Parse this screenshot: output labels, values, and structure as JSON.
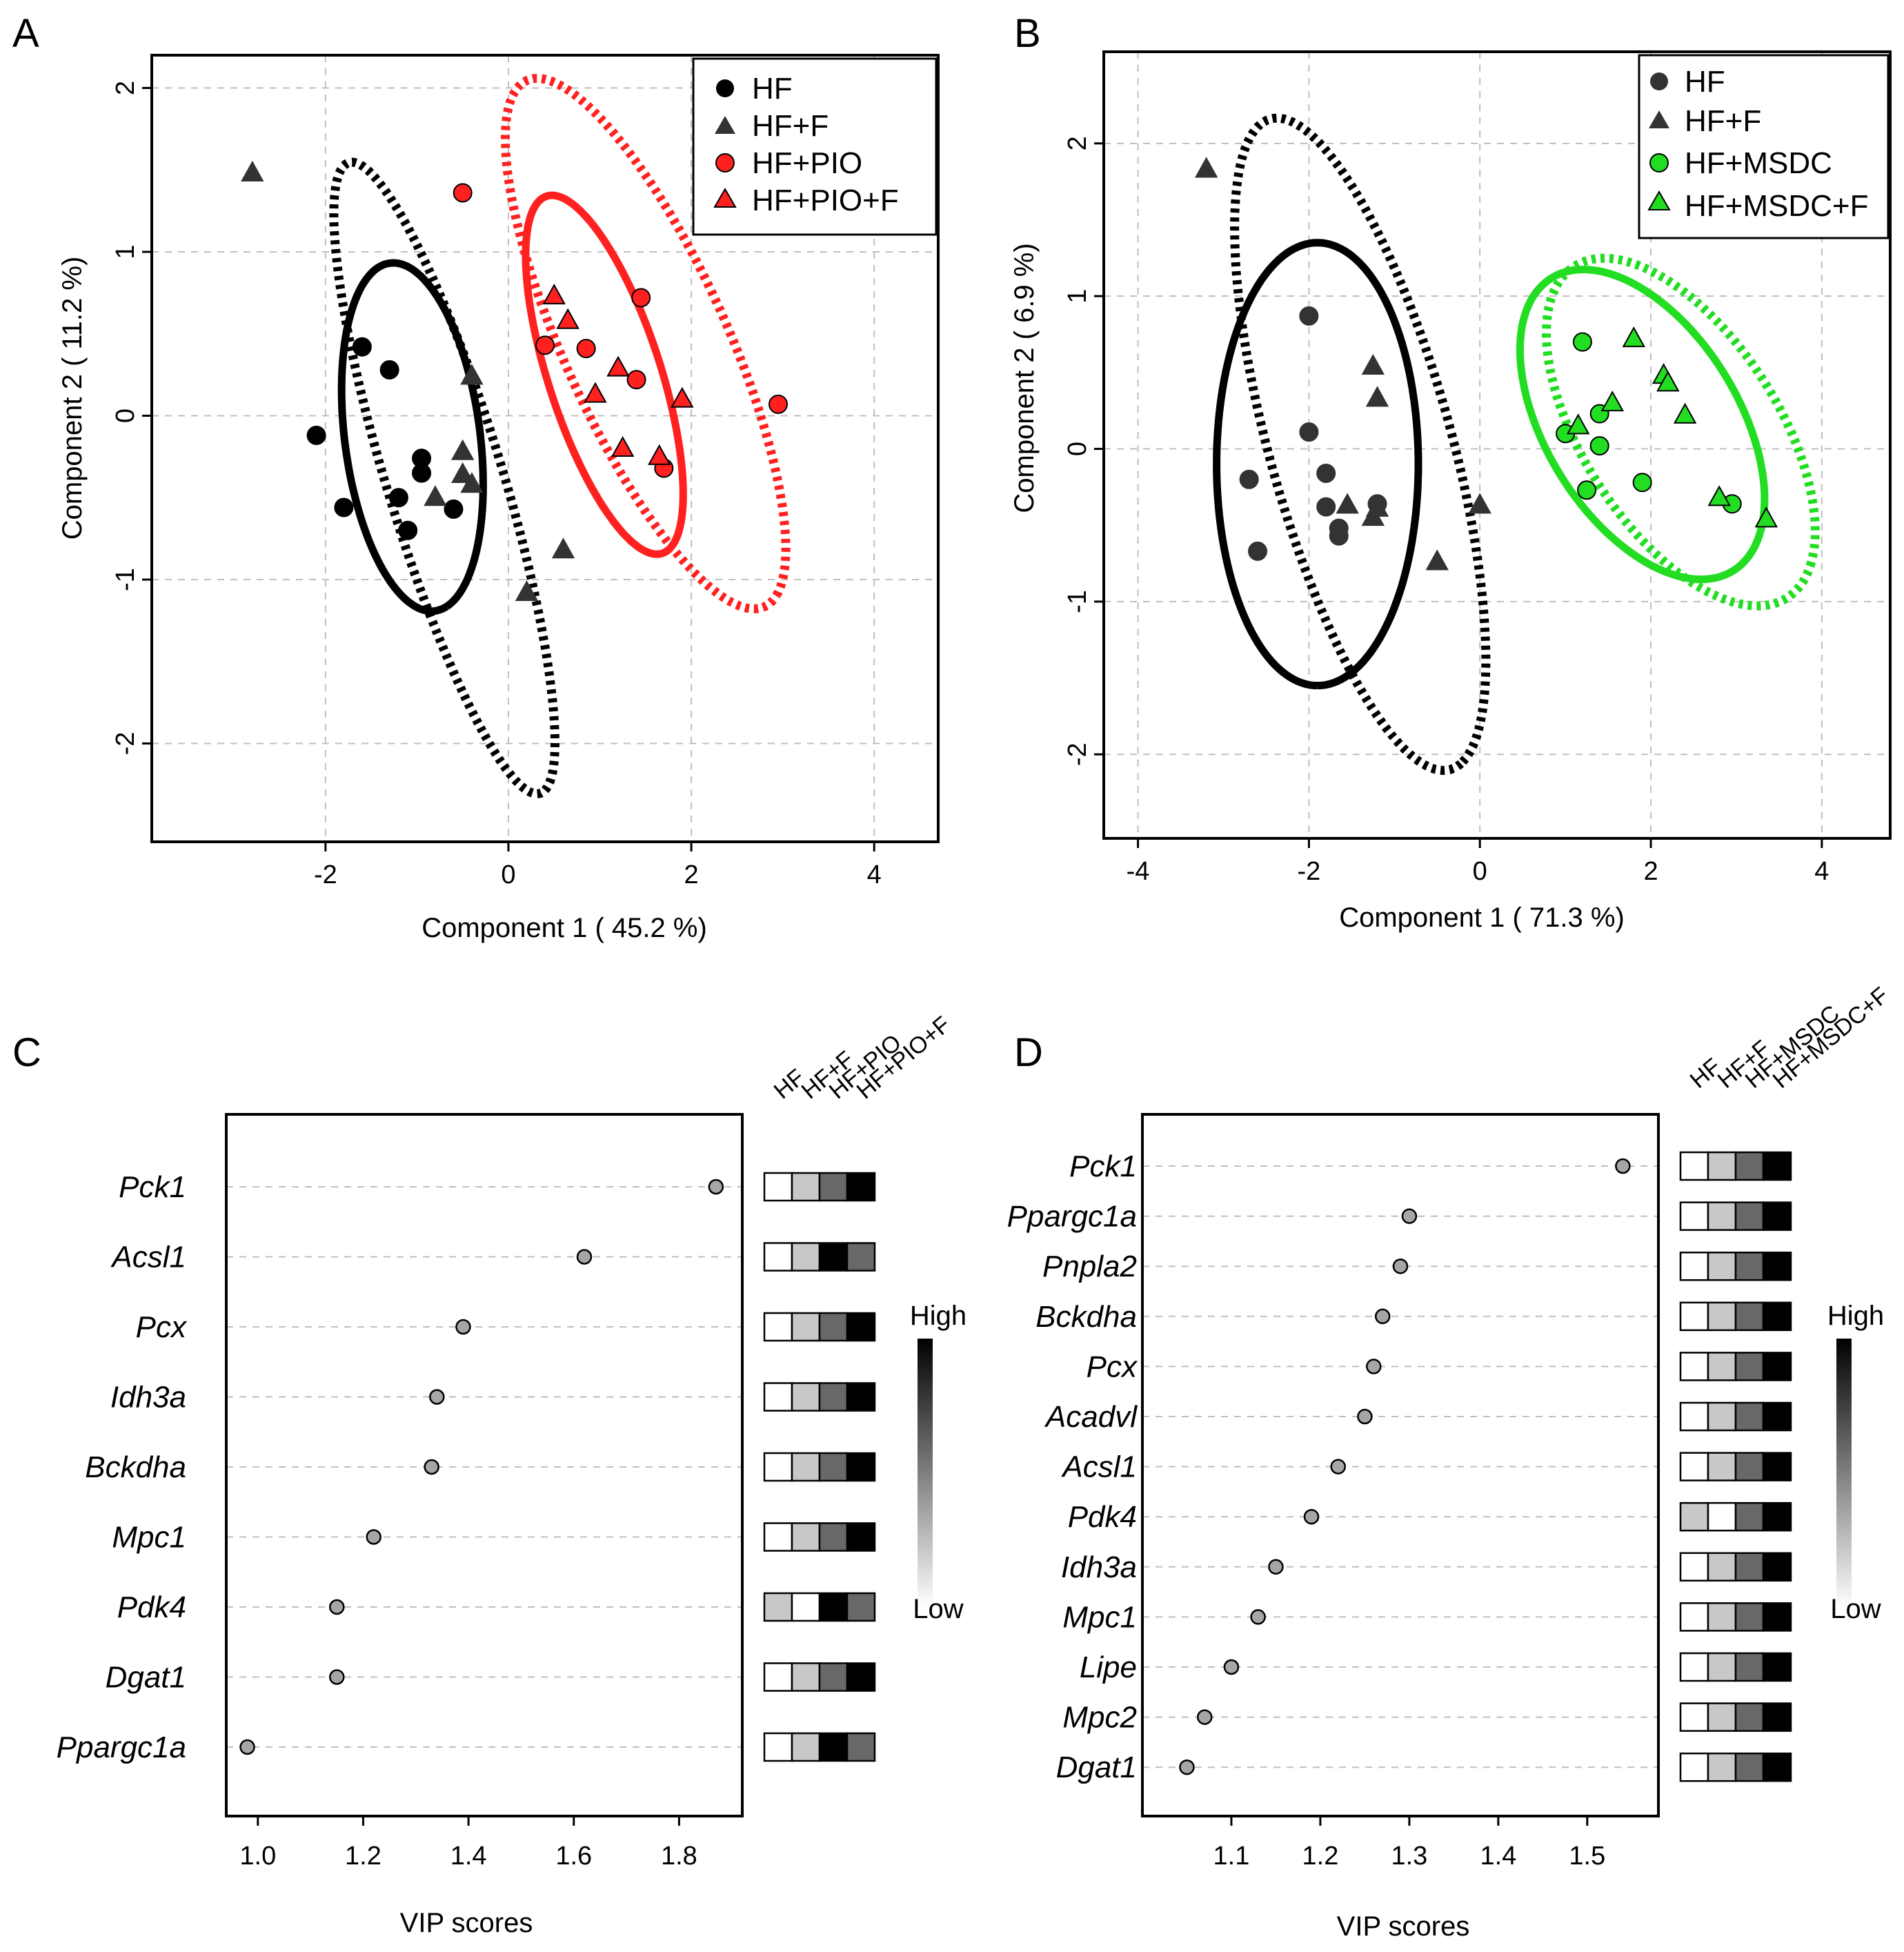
{
  "chart_data": [
    {
      "panel": "A",
      "type": "scatter",
      "xlabel": "Component 1 ( 45.2 %)",
      "ylabel": "Component 2 ( 11.2 %)",
      "xlim": [
        -3.9,
        4.7
      ],
      "ylim": [
        -2.6,
        2.2
      ],
      "xticks": [
        -2,
        0,
        2,
        4
      ],
      "yticks": [
        -2,
        -1,
        0,
        1,
        2
      ],
      "tick_labels_x": [
        "-2",
        "0",
        "2",
        "4"
      ],
      "tick_labels_y": [
        "-2",
        "-1",
        "0",
        "1",
        "2"
      ],
      "legend": {
        "position": "top-right",
        "entries": [
          {
            "label": "HF",
            "color": "#000000",
            "shape": "circle"
          },
          {
            "label": "HF+F",
            "color": "#333333",
            "shape": "triangle"
          },
          {
            "label": "HF+PIO",
            "color": "#ff2020",
            "shape": "circle"
          },
          {
            "label": "HF+PIO+F",
            "color": "#ff2020",
            "shape": "triangle"
          }
        ]
      },
      "series": [
        {
          "name": "HF",
          "color": "#000000",
          "shape": "circle",
          "points": [
            [
              -1.6,
              0.42
            ],
            [
              -1.3,
              0.28
            ],
            [
              -2.1,
              -0.12
            ],
            [
              -1.8,
              -0.56
            ],
            [
              -1.2,
              -0.5
            ],
            [
              -1.1,
              -0.7
            ],
            [
              -0.95,
              -0.26
            ],
            [
              -0.95,
              -0.35
            ],
            [
              -0.6,
              -0.57
            ]
          ]
        },
        {
          "name": "HF+F",
          "color": "#333333",
          "shape": "triangle",
          "points": [
            [
              -2.8,
              1.48
            ],
            [
              -0.4,
              0.24
            ],
            [
              -0.5,
              -0.22
            ],
            [
              -0.5,
              -0.36
            ],
            [
              -0.4,
              -0.42
            ],
            [
              -0.8,
              -0.5
            ],
            [
              0.6,
              -0.82
            ],
            [
              0.2,
              -1.08
            ]
          ]
        },
        {
          "name": "HF+PIO",
          "color": "#ff2020",
          "shape": "circle",
          "points": [
            [
              -0.5,
              1.36
            ],
            [
              1.45,
              0.72
            ],
            [
              0.4,
              0.43
            ],
            [
              0.85,
              0.41
            ],
            [
              1.4,
              0.22
            ],
            [
              1.7,
              -0.32
            ],
            [
              2.95,
              0.07
            ]
          ]
        },
        {
          "name": "HF+PIO+F",
          "color": "#ff2020",
          "shape": "triangle",
          "points": [
            [
              0.5,
              0.73
            ],
            [
              0.65,
              0.58
            ],
            [
              1.2,
              0.29
            ],
            [
              1.9,
              0.1
            ],
            [
              0.95,
              0.13
            ],
            [
              1.25,
              -0.2
            ],
            [
              1.65,
              -0.25
            ]
          ]
        }
      ],
      "ellipses": [
        {
          "group": "HF",
          "style": "solid",
          "color": "#000000",
          "cx": -1.05,
          "cy": -0.13,
          "rx": 1.1,
          "ry": 0.72,
          "angle_deg": -70
        },
        {
          "group": "HF+F",
          "style": "dotted",
          "color": "#000000",
          "cx": -0.7,
          "cy": -0.38,
          "rx": 2.2,
          "ry": 0.58,
          "angle_deg": -60
        },
        {
          "group": "HF+PIO",
          "style": "dotted",
          "color": "#ff2020",
          "cx": 1.5,
          "cy": 0.44,
          "rx": 2.1,
          "ry": 0.75,
          "angle_deg": -47
        },
        {
          "group": "HF+PIO+F",
          "style": "solid",
          "color": "#ff2020",
          "cx": 1.05,
          "cy": 0.25,
          "rx": 1.28,
          "ry": 0.55,
          "angle_deg": -55
        }
      ]
    },
    {
      "panel": "B",
      "type": "scatter",
      "xlabel": "Component 1 ( 71.3 %)",
      "ylabel": "Component 2 ( 6.9 %)",
      "xlim": [
        -4.4,
        4.8
      ],
      "ylim": [
        -2.55,
        2.6
      ],
      "xticks": [
        -4,
        -2,
        0,
        2,
        4
      ],
      "yticks": [
        -2,
        -1,
        0,
        1,
        2
      ],
      "tick_labels_x": [
        "-4",
        "-2",
        "0",
        "2",
        "4"
      ],
      "tick_labels_y": [
        "-2",
        "-1",
        "0",
        "1",
        "2"
      ],
      "legend": {
        "position": "top-right",
        "entries": [
          {
            "label": "HF",
            "color": "#333333",
            "shape": "circle"
          },
          {
            "label": "HF+F",
            "color": "#333333",
            "shape": "triangle"
          },
          {
            "label": "HF+MSDC",
            "color": "#22dd22",
            "shape": "circle"
          },
          {
            "label": "HF+MSDC+F",
            "color": "#22dd22",
            "shape": "triangle"
          }
        ]
      },
      "series": [
        {
          "name": "HF",
          "color": "#333333",
          "shape": "circle",
          "points": [
            [
              -2.0,
              0.87
            ],
            [
              -2.0,
              0.11
            ],
            [
              -2.7,
              -0.2
            ],
            [
              -2.6,
              -0.67
            ],
            [
              -1.8,
              -0.16
            ],
            [
              -1.8,
              -0.38
            ],
            [
              -1.65,
              -0.52
            ],
            [
              -1.65,
              -0.57
            ],
            [
              -1.2,
              -0.36
            ]
          ]
        },
        {
          "name": "HF+F",
          "color": "#333333",
          "shape": "triangle",
          "points": [
            [
              -3.2,
              1.83
            ],
            [
              -1.25,
              0.54
            ],
            [
              -1.2,
              0.33
            ],
            [
              -1.55,
              -0.37
            ],
            [
              -1.2,
              -0.39
            ],
            [
              -1.25,
              -0.45
            ],
            [
              0.0,
              -0.37
            ],
            [
              -0.5,
              -0.74
            ]
          ]
        },
        {
          "name": "HF+MSDC",
          "color": "#22dd22",
          "shape": "circle",
          "points": [
            [
              1.2,
              0.7
            ],
            [
              1.0,
              0.1
            ],
            [
              1.4,
              0.23
            ],
            [
              1.4,
              0.02
            ],
            [
              1.25,
              -0.27
            ],
            [
              1.9,
              -0.22
            ],
            [
              2.95,
              -0.36
            ]
          ]
        },
        {
          "name": "HF+MSDC+F",
          "color": "#22dd22",
          "shape": "triangle",
          "points": [
            [
              1.8,
              0.72
            ],
            [
              2.15,
              0.48
            ],
            [
              2.2,
              0.43
            ],
            [
              1.55,
              0.3
            ],
            [
              1.15,
              0.15
            ],
            [
              2.4,
              0.22
            ],
            [
              2.8,
              -0.32
            ],
            [
              3.35,
              -0.46
            ]
          ]
        }
      ],
      "ellipses": [
        {
          "group": "HF",
          "style": "solid",
          "color": "#000000",
          "cx": -1.9,
          "cy": -0.1,
          "rx": 1.45,
          "ry": 1.18,
          "angle_deg": -90
        },
        {
          "group": "HF+F",
          "style": "dotted",
          "color": "#000000",
          "cx": -1.4,
          "cy": 0.03,
          "rx": 2.4,
          "ry": 0.98,
          "angle_deg": -60
        },
        {
          "group": "HF+MSDC",
          "style": "solid",
          "color": "#22dd22",
          "cx": 1.9,
          "cy": 0.16,
          "rx": 1.55,
          "ry": 0.82,
          "angle_deg": -27
        },
        {
          "group": "HF+MSDC+F",
          "style": "dotted",
          "color": "#22dd22",
          "cx": 2.35,
          "cy": 0.11,
          "rx": 1.75,
          "ry": 0.84,
          "angle_deg": -30
        }
      ]
    },
    {
      "panel": "C",
      "type": "dot",
      "xlabel": "VIP scores",
      "xlim": [
        0.94,
        1.92
      ],
      "xticks": [
        1.0,
        1.2,
        1.4,
        1.6,
        1.8
      ],
      "tick_labels_x": [
        "1.0",
        "1.2",
        "1.4",
        "1.6",
        "1.8"
      ],
      "genes": [
        "Pck1",
        "Acsl1",
        "Pcx",
        "Idh3a",
        "Bckdha",
        "Mpc1",
        "Pdk4",
        "Dgat1",
        "Ppargc1a"
      ],
      "values": [
        1.87,
        1.62,
        1.39,
        1.34,
        1.33,
        1.22,
        1.15,
        1.15,
        0.98
      ],
      "heatmap_columns": [
        "HF",
        "HF+F",
        "HF+PIO",
        "HF+PIO+F"
      ],
      "heatmap_levels": [
        [
          0,
          1,
          2,
          3
        ],
        [
          0,
          1,
          3,
          2
        ],
        [
          0,
          1,
          2,
          3
        ],
        [
          0,
          1,
          2,
          3
        ],
        [
          0,
          1,
          2,
          3
        ],
        [
          0,
          1,
          2,
          3
        ],
        [
          1,
          0,
          3,
          2
        ],
        [
          0,
          1,
          2,
          3
        ],
        [
          0,
          1,
          3,
          2
        ]
      ],
      "scale_high": "High",
      "scale_low": "Low"
    },
    {
      "panel": "D",
      "type": "dot",
      "xlabel": "VIP scores",
      "xlim": [
        1.0,
        1.58
      ],
      "xticks": [
        1.1,
        1.2,
        1.3,
        1.4,
        1.5
      ],
      "tick_labels_x": [
        "1.1",
        "1.2",
        "1.3",
        "1.4",
        "1.5"
      ],
      "genes": [
        "Pck1",
        "Ppargc1a",
        "Pnpla2",
        "Bckdha",
        "Pcx",
        "Acadvl",
        "Acsl1",
        "Pdk4",
        "Idh3a",
        "Mpc1",
        "Lipe",
        "Mpc2",
        "Dgat1"
      ],
      "values": [
        1.54,
        1.3,
        1.29,
        1.27,
        1.26,
        1.25,
        1.22,
        1.19,
        1.15,
        1.13,
        1.1,
        1.07,
        1.05
      ],
      "heatmap_columns": [
        "HF",
        "HF+F",
        "HF+MSDC",
        "HF+MSDC+F"
      ],
      "heatmap_levels": [
        [
          0,
          1,
          2,
          3
        ],
        [
          0,
          1,
          2,
          3
        ],
        [
          0,
          1,
          2,
          3
        ],
        [
          0,
          1,
          2,
          3
        ],
        [
          0,
          1,
          2,
          3
        ],
        [
          0,
          1,
          2,
          3
        ],
        [
          0,
          1,
          2,
          3
        ],
        [
          1,
          0,
          2,
          3
        ],
        [
          0,
          1,
          2,
          3
        ],
        [
          0,
          1,
          2,
          3
        ],
        [
          0,
          1,
          2,
          3
        ],
        [
          0,
          1,
          2,
          3
        ],
        [
          0,
          1,
          2,
          3
        ]
      ],
      "scale_high": "High",
      "scale_low": "Low"
    }
  ],
  "panel_letters": [
    "A",
    "B",
    "C",
    "D"
  ],
  "colors": {
    "level0": "#ffffff",
    "level1": "#c8c8c8",
    "level2": "#686868",
    "level3": "#000000",
    "dot": "#a6a6a6",
    "red": "#ff2020",
    "green": "#22dd22"
  }
}
